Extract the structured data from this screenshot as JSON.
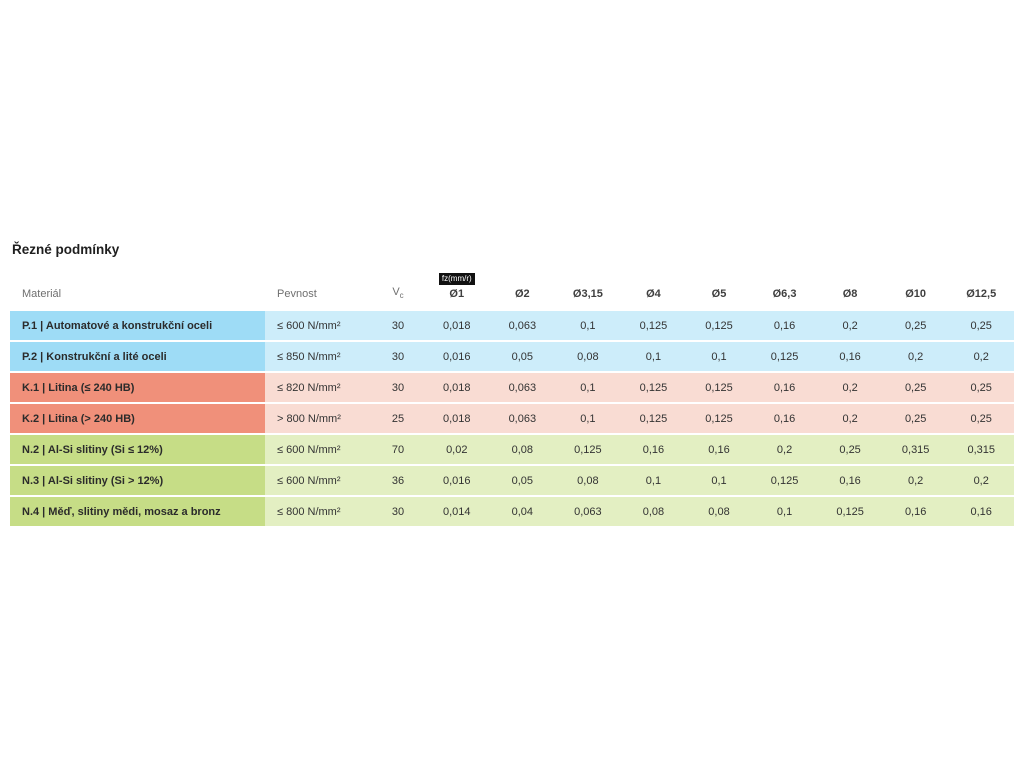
{
  "page": {
    "title": "Řezné podmínky"
  },
  "table": {
    "headers": {
      "material": "Materiál",
      "pevnost": "Pevnost",
      "vc_main": "V",
      "vc_sub": "c",
      "fz_badge": "fz(mm/r)",
      "diameters": [
        "Ø1",
        "Ø2",
        "Ø3,15",
        "Ø4",
        "Ø5",
        "Ø6,3",
        "Ø8",
        "Ø10",
        "Ø12,5"
      ]
    },
    "rows": [
      {
        "group": "P",
        "material": "P.1 | Automatové a konstrukční oceli",
        "pevnost": "≤ 600 N/mm²",
        "vc": "30",
        "values": [
          "0,018",
          "0,063",
          "0,1",
          "0,125",
          "0,125",
          "0,16",
          "0,2",
          "0,25",
          "0,25"
        ]
      },
      {
        "group": "P",
        "material": "P.2 | Konstrukční a lité oceli",
        "pevnost": "≤ 850 N/mm²",
        "vc": "30",
        "values": [
          "0,016",
          "0,05",
          "0,08",
          "0,1",
          "0,1",
          "0,125",
          "0,16",
          "0,2",
          "0,2"
        ]
      },
      {
        "group": "K",
        "material": "K.1 | Litina (≤ 240 HB)",
        "pevnost": "≤ 820 N/mm²",
        "vc": "30",
        "values": [
          "0,018",
          "0,063",
          "0,1",
          "0,125",
          "0,125",
          "0,16",
          "0,2",
          "0,25",
          "0,25"
        ]
      },
      {
        "group": "K",
        "material": "K.2 | Litina (> 240 HB)",
        "pevnost": "> 800 N/mm²",
        "vc": "25",
        "values": [
          "0,018",
          "0,063",
          "0,1",
          "0,125",
          "0,125",
          "0,16",
          "0,2",
          "0,25",
          "0,25"
        ]
      },
      {
        "group": "N",
        "material": "N.2 | Al-Si slitiny (Si ≤ 12%)",
        "pevnost": "≤ 600 N/mm²",
        "vc": "70",
        "values": [
          "0,02",
          "0,08",
          "0,125",
          "0,16",
          "0,16",
          "0,2",
          "0,25",
          "0,315",
          "0,315"
        ]
      },
      {
        "group": "N",
        "material": "N.3 | Al-Si slitiny (Si > 12%)",
        "pevnost": "≤ 600 N/mm²",
        "vc": "36",
        "values": [
          "0,016",
          "0,05",
          "0,08",
          "0,1",
          "0,1",
          "0,125",
          "0,16",
          "0,2",
          "0,2"
        ]
      },
      {
        "group": "N",
        "material": "N.4 | Měď, slitiny mědi, mosaz a bronz",
        "pevnost": "≤ 800 N/mm²",
        "vc": "30",
        "values": [
          "0,014",
          "0,04",
          "0,063",
          "0,08",
          "0,08",
          "0,1",
          "0,125",
          "0,16",
          "0,16"
        ]
      }
    ]
  },
  "colors": {
    "p_label": "#9edcf6",
    "p_row": "#cdedfa",
    "k_label": "#f0907a",
    "k_row": "#f9dcd3",
    "n_label": "#c6dd86",
    "n_row": "#e3efc2",
    "badge_bg": "#111111",
    "title_text": "#1f1f1f",
    "header_text": "#6f6f6f",
    "cell_text": "#333333"
  }
}
